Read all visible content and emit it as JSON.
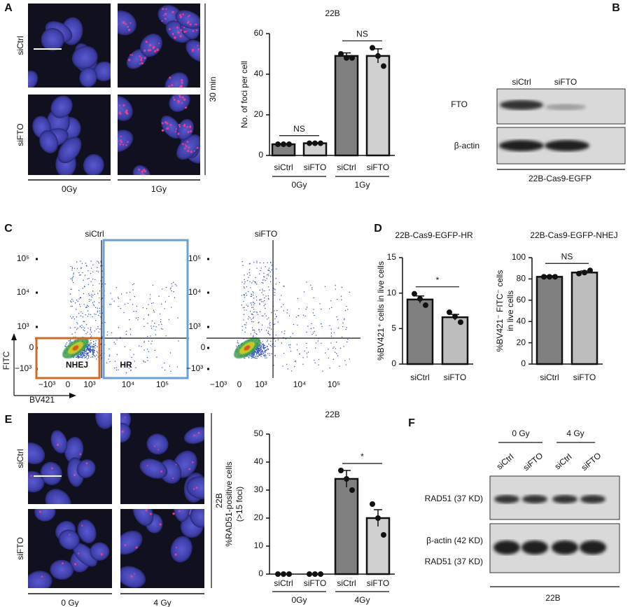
{
  "panel_labels": [
    "A",
    "B",
    "C",
    "D",
    "E",
    "F"
  ],
  "panel_a_images": {
    "rows": [
      "siCtrl",
      "siFTO"
    ],
    "cols": [
      "0Gy",
      "1Gy"
    ],
    "side": "30 min"
  },
  "panel_b_blot": {
    "lanes": [
      "siCtrl",
      "siFTO"
    ],
    "bands": [
      "FTO",
      "β-actin"
    ],
    "footer": "22B-Cas9-EGFP"
  },
  "panel_c_flow": {
    "plots": [
      "siCtrl",
      "siFTO"
    ],
    "x_label": "BV421",
    "y_label": "FITC",
    "gates": [
      "NHEJ",
      "HR"
    ],
    "yticks": [
      "10⁵",
      "10⁴",
      "10³",
      "0",
      "−10³"
    ],
    "xticks": [
      "−10³",
      "0",
      "10³",
      "10⁴",
      "10⁵"
    ]
  },
  "panel_e_images": {
    "rows": [
      "siCtrl",
      "siFTO"
    ],
    "cols": [
      "0 Gy",
      "4 Gy"
    ],
    "side": "22B"
  },
  "panel_f_blot": {
    "groups": [
      "0 Gy",
      "4 Gy"
    ],
    "lanes": [
      "siCtrl",
      "siFTO",
      "siCtrl",
      "siFTO"
    ],
    "bands": [
      "RAD51 (37 KD)",
      "β-actin (42 KD)",
      "RAD51 (37 KD)"
    ],
    "footer": "22B"
  },
  "chart_data": [
    {
      "type": "bar",
      "title": "22B",
      "y_label": [
        "No. of foci per cell"
      ],
      "categories": [
        "siCtrl",
        "siFTO",
        "siCtrl",
        "siFTO"
      ],
      "groups": [
        "0Gy",
        "1Gy"
      ],
      "values": [
        5.5,
        6,
        49,
        49
      ],
      "errors": [
        0.3,
        0.3,
        1.5,
        3.5
      ],
      "points": [
        [
          5.5,
          5.5,
          5.5
        ],
        [
          6,
          6,
          6
        ],
        [
          50,
          48,
          48
        ],
        [
          53,
          49,
          44
        ]
      ],
      "colors": [
        "#808080",
        "#d0d0d0",
        "#808080",
        "#d0d0d0"
      ],
      "ylim": [
        0,
        60
      ],
      "yticks": [
        0,
        20,
        40,
        60
      ],
      "brackets": [
        {
          "label": "NS",
          "from": 0,
          "to": 1
        },
        {
          "label": "NS",
          "from": 2,
          "to": 3
        }
      ]
    },
    {
      "type": "bar",
      "title": "22B-Cas9-EGFP-HR",
      "y_label": [
        "%BV421⁺ cells in live cells"
      ],
      "categories": [
        "siCtrl",
        "siFTO"
      ],
      "values": [
        9.1,
        6.6
      ],
      "errors": [
        0.5,
        0.4
      ],
      "points": [
        [
          9.9,
          9.2,
          8.3
        ],
        [
          7.3,
          6.7,
          5.9
        ]
      ],
      "colors": [
        "#808080",
        "#bdbdbd"
      ],
      "ylim": [
        0,
        15
      ],
      "yticks": [
        0,
        5,
        10,
        15
      ],
      "brackets": [
        {
          "label": "*",
          "from": 0,
          "to": 1
        }
      ]
    },
    {
      "type": "bar",
      "title": "22B-Cas9-EGFP-NHEJ",
      "y_label": [
        "%BV421⁻ FITC⁻ cells",
        "in live cells"
      ],
      "categories": [
        "siCtrl",
        "siFTO"
      ],
      "values": [
        82,
        86
      ],
      "errors": [
        1,
        1.5
      ],
      "points": [
        [
          82,
          82,
          82
        ],
        [
          85,
          86,
          88
        ]
      ],
      "colors": [
        "#808080",
        "#bdbdbd"
      ],
      "ylim": [
        0,
        100
      ],
      "yticks": [
        0,
        20,
        40,
        60,
        80,
        100
      ],
      "brackets": [
        {
          "label": "NS",
          "from": 0,
          "to": 1
        }
      ]
    },
    {
      "type": "bar",
      "title": "22B",
      "y_label": [
        "%RAD51-positive cells",
        "(>15 foci)"
      ],
      "categories": [
        "siCtrl",
        "siFTO",
        "siCtrl",
        "siFTO"
      ],
      "groups": [
        "0Gy",
        "4Gy"
      ],
      "values": [
        0,
        0,
        34,
        20
      ],
      "errors": [
        0,
        0,
        3,
        3
      ],
      "points": [
        [
          0,
          0,
          0
        ],
        [
          0,
          0,
          0
        ],
        [
          37,
          34,
          30
        ],
        [
          25,
          20,
          14
        ]
      ],
      "colors": [
        "#808080",
        "#d0d0d0",
        "#808080",
        "#d0d0d0"
      ],
      "ylim": [
        0,
        50
      ],
      "yticks": [
        0,
        10,
        20,
        30,
        40,
        50
      ],
      "brackets": [
        {
          "label": "*",
          "from": 2,
          "to": 3
        }
      ]
    }
  ]
}
